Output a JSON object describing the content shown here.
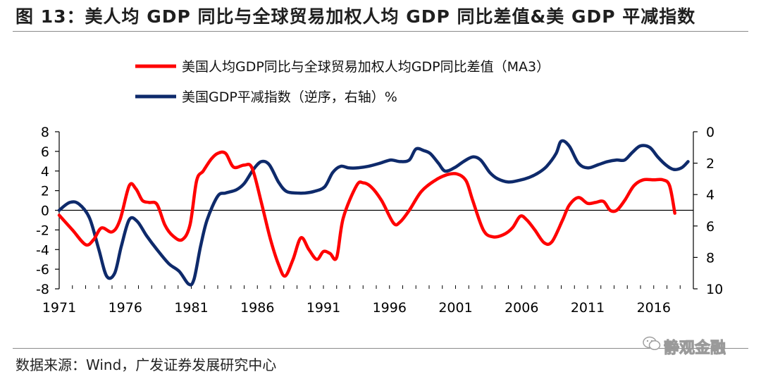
{
  "header": {
    "title": "图 13：美人均 GDP 同比与全球贸易加权人均 GDP 同比差值&美 GDP 平减指数"
  },
  "footer": {
    "source": "数据来源：Wind，广发证券发展研究中心",
    "watermark": "静观金融",
    "watermark_icon": "wechat-icon"
  },
  "chart_data": {
    "type": "line",
    "legend_placement": "top",
    "grid": false,
    "x_ticks": [
      "1971",
      "1976",
      "1981",
      "1986",
      "1991",
      "1996",
      "2001",
      "2006",
      "2011",
      "2016"
    ],
    "xlim": [
      1971,
      2019
    ],
    "left_axis": {
      "ylim": [
        -8,
        8
      ],
      "ticks": [
        "8",
        "6",
        "4",
        "2",
        "0",
        "-2",
        "-4",
        "-6",
        "-8"
      ]
    },
    "right_axis": {
      "ylim": [
        0,
        10
      ],
      "inverted": true,
      "ticks": [
        "0",
        "2",
        "4",
        "6",
        "8",
        "10"
      ]
    },
    "series": [
      {
        "name": "美国人均GDP同比与全球贸易加权人均GDP同比差值（MA3）",
        "color": "#ff0000",
        "axis": "left",
        "points": [
          [
            1971.0,
            -0.5
          ],
          [
            1972.0,
            -2.0
          ],
          [
            1973.0,
            -3.5
          ],
          [
            1973.6,
            -3.0
          ],
          [
            1974.2,
            -1.8
          ],
          [
            1975.0,
            -2.2
          ],
          [
            1975.6,
            -1.0
          ],
          [
            1976.3,
            2.5
          ],
          [
            1976.8,
            2.2
          ],
          [
            1977.3,
            1.0
          ],
          [
            1977.8,
            0.8
          ],
          [
            1978.4,
            0.6
          ],
          [
            1979.0,
            -1.5
          ],
          [
            1979.6,
            -2.6
          ],
          [
            1980.3,
            -3.0
          ],
          [
            1980.9,
            -1.5
          ],
          [
            1981.4,
            3.0
          ],
          [
            1981.9,
            4.0
          ],
          [
            1982.5,
            5.2
          ],
          [
            1983.0,
            5.8
          ],
          [
            1983.6,
            5.8
          ],
          [
            1984.2,
            4.4
          ],
          [
            1985.0,
            4.6
          ],
          [
            1985.6,
            4.3
          ],
          [
            1986.3,
            0.8
          ],
          [
            1987.0,
            -3.0
          ],
          [
            1987.6,
            -5.5
          ],
          [
            1988.1,
            -6.7
          ],
          [
            1988.7,
            -5.0
          ],
          [
            1989.3,
            -2.8
          ],
          [
            1989.9,
            -4.0
          ],
          [
            1990.5,
            -5.0
          ],
          [
            1991.0,
            -4.2
          ],
          [
            1991.5,
            -4.4
          ],
          [
            1992.0,
            -4.8
          ],
          [
            1992.5,
            -0.8
          ],
          [
            1993.5,
            2.5
          ],
          [
            1994.0,
            2.8
          ],
          [
            1994.6,
            2.4
          ],
          [
            1995.4,
            1.0
          ],
          [
            1996.3,
            -1.3
          ],
          [
            1996.8,
            -1.2
          ],
          [
            1997.5,
            0.0
          ],
          [
            1998.4,
            1.9
          ],
          [
            1999.4,
            3.0
          ],
          [
            2000.3,
            3.6
          ],
          [
            2001.1,
            3.7
          ],
          [
            2001.8,
            3.0
          ],
          [
            2002.3,
            1.0
          ],
          [
            2003.1,
            -2.0
          ],
          [
            2003.8,
            -2.7
          ],
          [
            2004.6,
            -2.5
          ],
          [
            2005.3,
            -1.8
          ],
          [
            2005.9,
            -0.6
          ],
          [
            2006.4,
            -1.0
          ],
          [
            2007.0,
            -2.0
          ],
          [
            2007.7,
            -3.3
          ],
          [
            2008.3,
            -3.2
          ],
          [
            2009.1,
            -1.0
          ],
          [
            2009.6,
            0.5
          ],
          [
            2010.3,
            1.3
          ],
          [
            2011.0,
            0.7
          ],
          [
            2011.6,
            0.8
          ],
          [
            2012.2,
            0.9
          ],
          [
            2012.7,
            0.0
          ],
          [
            2013.2,
            0.0
          ],
          [
            2013.8,
            1.0
          ],
          [
            2014.5,
            2.5
          ],
          [
            2015.2,
            3.1
          ],
          [
            2016.0,
            3.1
          ],
          [
            2016.7,
            3.1
          ],
          [
            2017.2,
            2.5
          ],
          [
            2017.6,
            -0.3
          ]
        ]
      },
      {
        "name": "美国GDP平减指数（逆序，右轴）%",
        "color": "#0e2a6b",
        "axis": "right",
        "points": [
          [
            1971.0,
            5.0
          ],
          [
            1971.8,
            4.5
          ],
          [
            1972.5,
            4.6
          ],
          [
            1973.3,
            5.5
          ],
          [
            1974.0,
            7.5
          ],
          [
            1974.6,
            9.2
          ],
          [
            1975.2,
            9.0
          ],
          [
            1975.7,
            7.3
          ],
          [
            1976.3,
            5.6
          ],
          [
            1976.9,
            5.7
          ],
          [
            1977.6,
            6.6
          ],
          [
            1978.4,
            7.5
          ],
          [
            1979.3,
            8.4
          ],
          [
            1980.1,
            8.9
          ],
          [
            1980.8,
            9.7
          ],
          [
            1981.2,
            9.4
          ],
          [
            1981.7,
            7.3
          ],
          [
            1982.2,
            5.6
          ],
          [
            1983.0,
            4.1
          ],
          [
            1983.6,
            3.9
          ],
          [
            1984.4,
            3.7
          ],
          [
            1985.0,
            3.3
          ],
          [
            1985.7,
            2.4
          ],
          [
            1986.3,
            1.9
          ],
          [
            1986.9,
            2.1
          ],
          [
            1987.6,
            3.2
          ],
          [
            1988.2,
            3.8
          ],
          [
            1989.0,
            3.9
          ],
          [
            1989.6,
            3.9
          ],
          [
            1990.3,
            3.8
          ],
          [
            1991.1,
            3.5
          ],
          [
            1991.7,
            2.6
          ],
          [
            1992.3,
            2.2
          ],
          [
            1992.9,
            2.3
          ],
          [
            1993.6,
            2.3
          ],
          [
            1994.4,
            2.2
          ],
          [
            1995.3,
            2.0
          ],
          [
            1996.1,
            1.8
          ],
          [
            1996.8,
            1.9
          ],
          [
            1997.5,
            1.8
          ],
          [
            1998.0,
            1.1
          ],
          [
            1998.6,
            1.2
          ],
          [
            1999.1,
            1.4
          ],
          [
            1999.7,
            2.0
          ],
          [
            2000.2,
            2.5
          ],
          [
            2000.9,
            2.3
          ],
          [
            2001.6,
            1.9
          ],
          [
            2002.3,
            1.6
          ],
          [
            2002.9,
            1.8
          ],
          [
            2003.6,
            2.6
          ],
          [
            2004.2,
            3.0
          ],
          [
            2005.0,
            3.2
          ],
          [
            2005.8,
            3.1
          ],
          [
            2006.6,
            2.9
          ],
          [
            2007.3,
            2.6
          ],
          [
            2007.9,
            2.2
          ],
          [
            2008.6,
            1.4
          ],
          [
            2009.0,
            0.6
          ],
          [
            2009.6,
            0.9
          ],
          [
            2010.3,
            2.0
          ],
          [
            2011.0,
            2.3
          ],
          [
            2011.8,
            2.1
          ],
          [
            2012.5,
            1.9
          ],
          [
            2013.2,
            1.8
          ],
          [
            2013.8,
            1.8
          ],
          [
            2014.4,
            1.3
          ],
          [
            2015.0,
            0.9
          ],
          [
            2015.7,
            1.0
          ],
          [
            2016.3,
            1.6
          ],
          [
            2016.9,
            2.1
          ],
          [
            2017.5,
            2.4
          ],
          [
            2018.1,
            2.3
          ],
          [
            2018.6,
            1.9
          ]
        ]
      }
    ]
  }
}
